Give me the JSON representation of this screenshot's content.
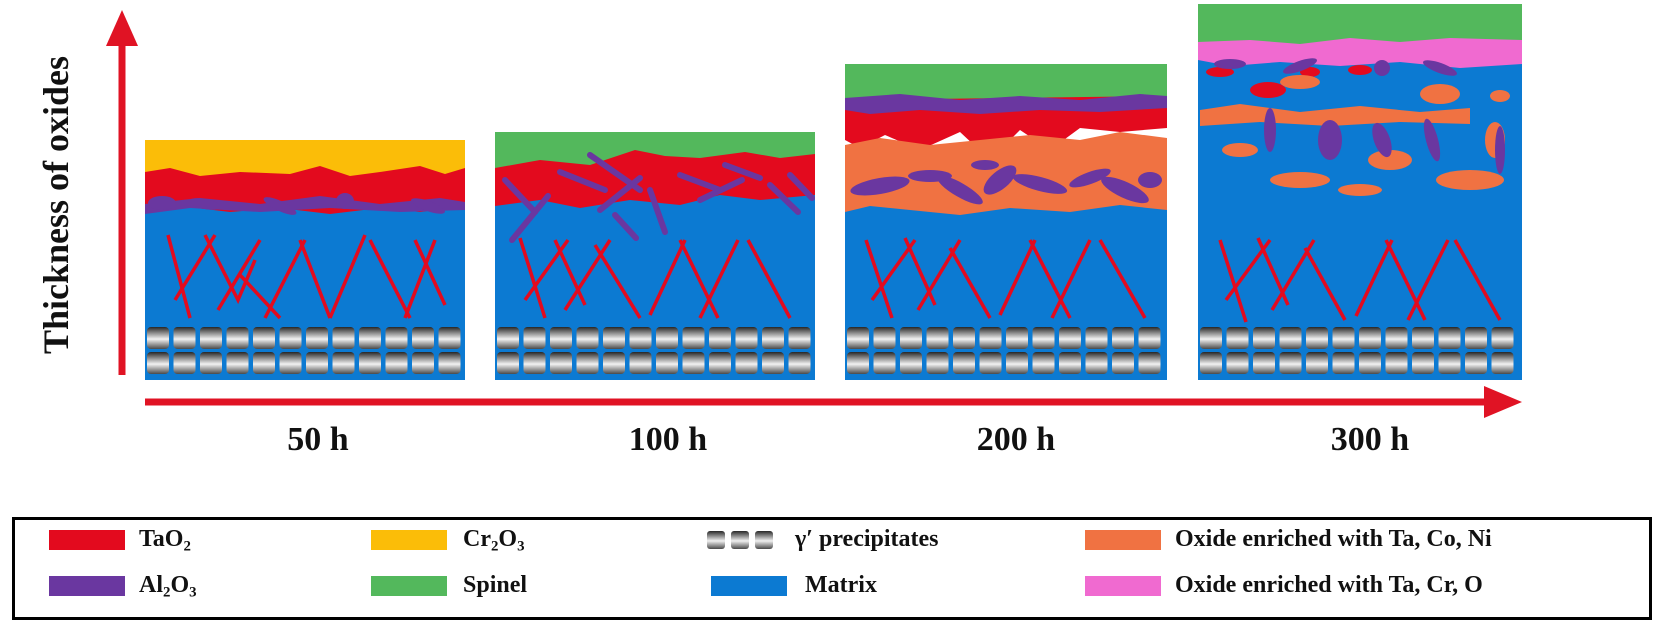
{
  "y_axis_label": "Thickness of oxides",
  "time_labels": [
    "50 h",
    "100 h",
    "200 h",
    "300 h"
  ],
  "colors": {
    "TaO2": "#e30a1e",
    "Cr2O3": "#fbbd08",
    "Al2O3": "#6a37a0",
    "Spinel": "#53b85c",
    "Matrix": "#0c7ad2",
    "oxide_ta_co_ni": "#f07242",
    "oxide_ta_cr_o": "#f06ad0",
    "arrow": "#e01324"
  },
  "legend": {
    "tao2": {
      "base": "TaO",
      "sub": "2"
    },
    "al2o3": {
      "p1": "Al",
      "s1": "2",
      "p2": "O",
      "s2": "3"
    },
    "cr2o3": {
      "p1": "Cr",
      "s1": "2",
      "p2": "O",
      "s2": "3"
    },
    "spinel": "Spinel",
    "gamma_prime": "γ′ precipitates",
    "matrix": "Matrix",
    "oxide_ta_co_ni": "Oxide enriched with Ta, Co, Ni",
    "oxide_ta_cr_o": "Oxide enriched with Ta, Cr, O"
  }
}
